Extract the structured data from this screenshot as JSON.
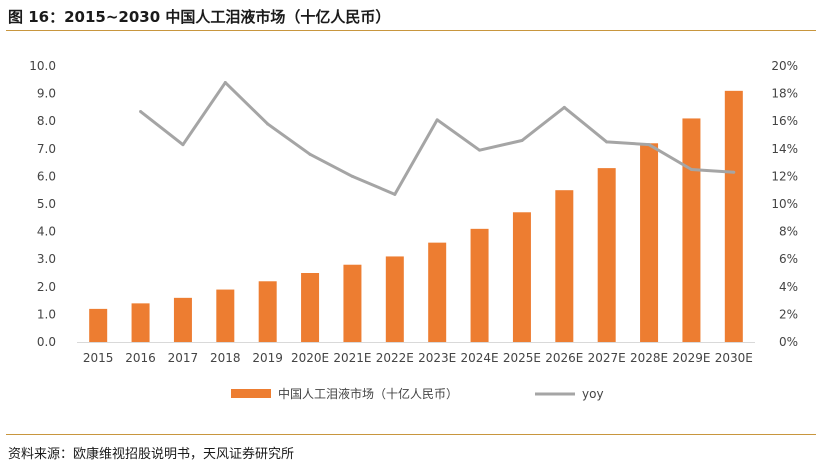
{
  "title": "图 16：2015~2030 中国人工泪液市场（十亿人民币）",
  "source": "资料来源：欧康维视招股说明书，天风证券研究所",
  "colors": {
    "bar": "#ed7d31",
    "line": "#a5a5a5",
    "accent_rule": "#c8963e"
  },
  "chart_data": {
    "type": "bar",
    "categories": [
      "2015",
      "2016",
      "2017",
      "2018",
      "2019",
      "2020E",
      "2021E",
      "2022E",
      "2023E",
      "2024E",
      "2025E",
      "2026E",
      "2027E",
      "2028E",
      "2029E",
      "2030E"
    ],
    "series": [
      {
        "name": "中国人工泪液市场（十亿人民币）",
        "type": "bar",
        "axis": "left",
        "values": [
          1.2,
          1.4,
          1.6,
          1.9,
          2.2,
          2.5,
          2.8,
          3.1,
          3.6,
          4.1,
          4.7,
          5.5,
          6.3,
          7.2,
          8.1,
          9.1
        ]
      },
      {
        "name": "yoy",
        "type": "line",
        "axis": "right",
        "values": [
          null,
          16.7,
          14.3,
          18.8,
          15.8,
          13.6,
          12.0,
          10.7,
          16.1,
          13.9,
          14.6,
          17.0,
          14.5,
          14.3,
          12.5,
          12.3
        ]
      }
    ],
    "y_left": {
      "ylim": [
        0,
        10
      ],
      "ticks": [
        "0.0",
        "1.0",
        "2.0",
        "3.0",
        "4.0",
        "5.0",
        "6.0",
        "7.0",
        "8.0",
        "9.0",
        "10.0"
      ]
    },
    "y_right": {
      "ylim": [
        0,
        20
      ],
      "ticks": [
        "0%",
        "2%",
        "4%",
        "6%",
        "8%",
        "10%",
        "12%",
        "14%",
        "16%",
        "18%",
        "20%"
      ]
    },
    "grid": false,
    "legend_position": "bottom"
  }
}
